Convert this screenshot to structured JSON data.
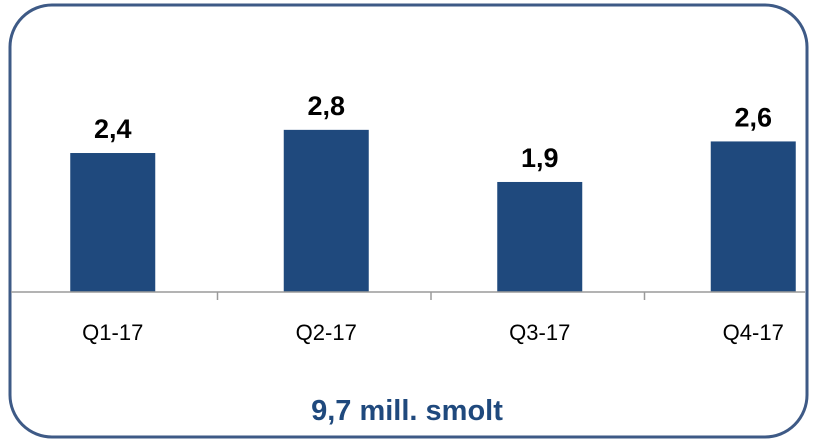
{
  "colors": {
    "bar": "#1f497d",
    "frame": "#3e5a86",
    "axis": "#9a9a9a",
    "label": "#000000",
    "summary": "#1f497d"
  },
  "chart_data": {
    "type": "bar",
    "categories": [
      "Q1-17",
      "Q2-17",
      "Q3-17",
      "Q4-17"
    ],
    "values": [
      2.4,
      2.8,
      1.9,
      2.6
    ],
    "value_labels": [
      "2,4",
      "2,8",
      "1,9",
      "2,6"
    ],
    "ylim": [
      0,
      3.35
    ],
    "grid": false,
    "legend": "none",
    "summary": "9,7 mill. smolt"
  }
}
